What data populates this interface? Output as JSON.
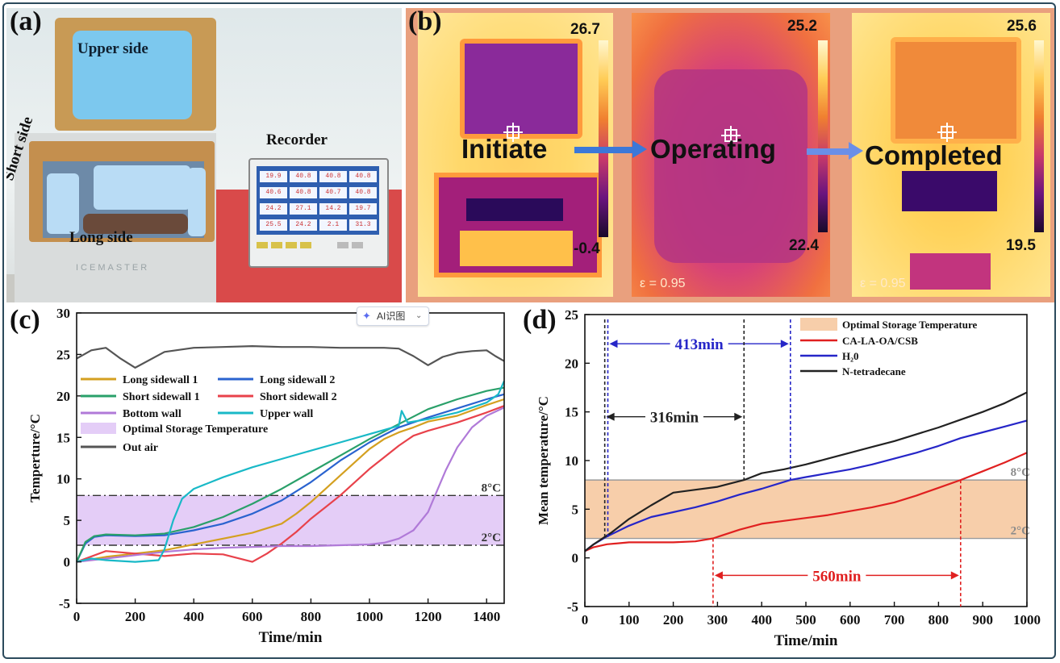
{
  "panels": {
    "a": {
      "letter": "(a)",
      "labels": {
        "upper": "Upper side",
        "short": "Short side",
        "long": "Long side",
        "recorder": "Recorder"
      },
      "brand": "ICEMASTER",
      "recorder_readings": [
        "19.9",
        "40.8",
        "40.8",
        "40.8",
        "40.6",
        "40.8",
        "40.7",
        "40.8",
        "24.2",
        "27.1",
        "14.2",
        "19.7",
        "25.5",
        "24.2",
        "2.1",
        "31.3"
      ]
    },
    "b": {
      "letter": "(b)",
      "stages": [
        "Initiate",
        "Operating",
        "Completed"
      ],
      "images": [
        {
          "max": "26.7",
          "min": "-0.4",
          "emissivity": ""
        },
        {
          "max": "25.2",
          "min": "22.4",
          "emissivity": "ε = 0.95"
        },
        {
          "max": "25.6",
          "min": "19.5",
          "emissivity": "ε = 0.95"
        }
      ],
      "colors": {
        "background": "#e9a07e",
        "arrow": "#3c78d8"
      }
    },
    "ai_badge": {
      "label": "AI识图",
      "icon": "sparkle-icon"
    }
  },
  "chart_data": [
    {
      "id": "c",
      "letter": "(c)",
      "type": "line",
      "xlabel": "Time/min",
      "ylabel": "Temperture/°C",
      "xlim": [
        0,
        1460
      ],
      "ylim": [
        -5,
        30
      ],
      "xticks": [
        0,
        200,
        400,
        600,
        800,
        1000,
        1200,
        1400
      ],
      "yticks": [
        -5,
        0,
        5,
        10,
        15,
        20,
        25,
        30
      ],
      "band": {
        "label": "Optimal Storage Temperature",
        "from": 2,
        "to": 8,
        "color": "#e4cdf7"
      },
      "ref_lines": [
        {
          "y": 8,
          "label": "8°C"
        },
        {
          "y": 2,
          "label": "2°C"
        }
      ],
      "series": [
        {
          "name": "Long sidewall 1",
          "color": "#d4a020",
          "x": [
            0,
            100,
            200,
            300,
            400,
            500,
            600,
            700,
            750,
            800,
            850,
            900,
            950,
            1000,
            1050,
            1100,
            1150,
            1200,
            1300,
            1400,
            1460
          ],
          "y": [
            0,
            0.6,
            1.0,
            1.4,
            2.1,
            2.8,
            3.5,
            4.6,
            5.8,
            7.2,
            8.8,
            10.4,
            12.0,
            13.6,
            14.8,
            15.6,
            16.2,
            16.9,
            17.6,
            18.9,
            19.6
          ]
        },
        {
          "name": "Long sidewall 2",
          "color": "#2a63cf",
          "x": [
            0,
            30,
            60,
            100,
            200,
            300,
            400,
            500,
            600,
            700,
            800,
            900,
            1000,
            1100,
            1200,
            1300,
            1400,
            1460
          ],
          "y": [
            0,
            2.2,
            3.0,
            3.2,
            3.1,
            3.2,
            3.8,
            4.6,
            5.8,
            7.4,
            9.6,
            12.2,
            14.4,
            16.2,
            17.4,
            18.5,
            19.6,
            20.2
          ]
        },
        {
          "name": "Short sidewall 1",
          "color": "#2aa06a",
          "x": [
            0,
            30,
            60,
            100,
            200,
            300,
            400,
            500,
            600,
            700,
            800,
            900,
            1000,
            1100,
            1200,
            1300,
            1400,
            1460
          ],
          "y": [
            0,
            2.4,
            3.1,
            3.3,
            3.2,
            3.4,
            4.2,
            5.4,
            7.0,
            8.8,
            10.8,
            12.8,
            14.8,
            16.6,
            18.4,
            19.6,
            20.6,
            21.0
          ]
        },
        {
          "name": "Short sidewall 2",
          "color": "#e8424b",
          "x": [
            0,
            100,
            200,
            300,
            400,
            500,
            600,
            650,
            700,
            750,
            800,
            850,
            900,
            950,
            1000,
            1050,
            1100,
            1150,
            1200,
            1300,
            1400,
            1460
          ],
          "y": [
            0,
            1.3,
            1.0,
            0.7,
            1.0,
            0.9,
            0.0,
            1.0,
            2.2,
            3.6,
            5.2,
            6.6,
            8.0,
            9.6,
            11.2,
            12.6,
            14.0,
            15.2,
            15.8,
            16.8,
            18.0,
            18.8
          ]
        },
        {
          "name": "Bottom wall",
          "color": "#b07ad8",
          "x": [
            0,
            100,
            200,
            300,
            400,
            500,
            600,
            700,
            800,
            900,
            1000,
            1050,
            1100,
            1150,
            1200,
            1230,
            1260,
            1300,
            1350,
            1400,
            1460
          ],
          "y": [
            0,
            0.4,
            0.8,
            1.2,
            1.5,
            1.7,
            1.8,
            1.9,
            1.9,
            2.0,
            2.1,
            2.3,
            2.8,
            3.8,
            6.0,
            8.5,
            11.0,
            13.8,
            16.2,
            17.6,
            18.6
          ]
        },
        {
          "name": "Upper wall",
          "color": "#19b9c7",
          "x": [
            0,
            50,
            100,
            200,
            280,
            300,
            330,
            360,
            400,
            500,
            600,
            700,
            800,
            900,
            1000,
            1100,
            1110,
            1130,
            1200,
            1300,
            1400,
            1440,
            1460
          ],
          "y": [
            0,
            0.4,
            0.2,
            0.0,
            0.2,
            1.5,
            5.0,
            7.6,
            8.8,
            10.2,
            11.4,
            12.4,
            13.4,
            14.4,
            15.4,
            16.4,
            18.2,
            16.8,
            17.2,
            18.0,
            19.2,
            20.2,
            21.8
          ]
        },
        {
          "name": "Out air",
          "color": "#555555",
          "x": [
            0,
            50,
            100,
            150,
            200,
            300,
            400,
            500,
            600,
            700,
            800,
            900,
            1000,
            1050,
            1100,
            1150,
            1200,
            1250,
            1300,
            1350,
            1400,
            1430,
            1460
          ],
          "y": [
            24.5,
            25.5,
            25.8,
            24.5,
            23.4,
            25.3,
            25.8,
            25.9,
            26.0,
            25.9,
            25.9,
            25.8,
            25.8,
            25.8,
            25.7,
            24.8,
            23.7,
            24.7,
            25.2,
            25.4,
            25.5,
            24.8,
            24.2
          ]
        }
      ]
    },
    {
      "id": "d",
      "letter": "(d)",
      "type": "line",
      "xlabel": "Time/min",
      "ylabel": "Mean temperature/°C",
      "xlim": [
        0,
        1000
      ],
      "ylim": [
        -5,
        25
      ],
      "xticks": [
        0,
        100,
        200,
        300,
        400,
        500,
        600,
        700,
        800,
        900,
        1000
      ],
      "yticks": [
        -5,
        0,
        5,
        10,
        15,
        20,
        25
      ],
      "band": {
        "label": "Optimal Storage Temperature",
        "from": 2,
        "to": 8,
        "color": "#f7ceaa"
      },
      "ref_lines": [
        {
          "y": 8,
          "label": "8°C"
        },
        {
          "y": 2,
          "label": "2°C"
        }
      ],
      "series": [
        {
          "name": "CA-LA-OA/CSB",
          "color": "#e02020",
          "x": [
            0,
            20,
            50,
            100,
            150,
            200,
            250,
            290,
            350,
            400,
            450,
            500,
            550,
            600,
            650,
            700,
            750,
            800,
            850,
            900,
            950,
            1000
          ],
          "y": [
            0.7,
            1.1,
            1.4,
            1.6,
            1.6,
            1.6,
            1.7,
            2.0,
            2.9,
            3.5,
            3.8,
            4.1,
            4.4,
            4.8,
            5.2,
            5.7,
            6.4,
            7.2,
            8.0,
            8.9,
            9.8,
            10.8
          ]
        },
        {
          "name": "H₂0",
          "color": "#2626c8",
          "x": [
            0,
            20,
            50,
            100,
            150,
            200,
            250,
            300,
            350,
            400,
            465,
            500,
            550,
            600,
            650,
            700,
            750,
            800,
            850,
            900,
            950,
            1000
          ],
          "y": [
            0.7,
            1.4,
            2.2,
            3.3,
            4.2,
            4.7,
            5.2,
            5.8,
            6.5,
            7.1,
            8.0,
            8.3,
            8.7,
            9.1,
            9.6,
            10.2,
            10.8,
            11.5,
            12.3,
            12.9,
            13.5,
            14.1
          ]
        },
        {
          "name": "N-tetradecane",
          "color": "#222222",
          "x": [
            0,
            20,
            40,
            60,
            100,
            150,
            200,
            250,
            300,
            360,
            400,
            450,
            500,
            550,
            600,
            650,
            700,
            750,
            800,
            850,
            900,
            950,
            1000
          ],
          "y": [
            0.7,
            1.4,
            2.0,
            2.6,
            4.0,
            5.4,
            6.7,
            7.0,
            7.3,
            8.0,
            8.7,
            9.1,
            9.6,
            10.2,
            10.8,
            11.4,
            12.0,
            12.7,
            13.4,
            14.2,
            15.0,
            15.9,
            17.0
          ]
        }
      ],
      "intervals": [
        {
          "label": "413min",
          "from": 52,
          "to": 465,
          "y": 22,
          "color": "#2626c8"
        },
        {
          "label": "316min",
          "from": 45,
          "to": 360,
          "y": 14.5,
          "color": "#222222"
        },
        {
          "label": "560min",
          "from": 290,
          "to": 850,
          "y": -1.8,
          "color": "#e02020"
        }
      ]
    }
  ]
}
